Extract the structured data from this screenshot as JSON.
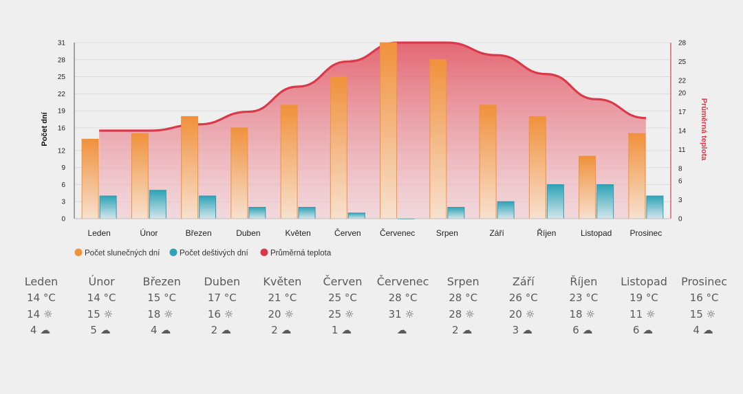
{
  "chart_data": {
    "type": "bar",
    "categories": [
      "Leden",
      "Únor",
      "Březen",
      "Duben",
      "Květen",
      "Červen",
      "Červenec",
      "Srpen",
      "Září",
      "Říjen",
      "Listopad",
      "Prosinec"
    ],
    "series": [
      {
        "name": "Počet slunečných dní",
        "kind": "bar",
        "axis": "left",
        "color": "#f0913c",
        "values": [
          14,
          15,
          18,
          16,
          20,
          25,
          31,
          28,
          20,
          18,
          11,
          15
        ]
      },
      {
        "name": "Počet deštivých dní",
        "kind": "bar",
        "axis": "left",
        "color": "#2fa3b5",
        "values": [
          4,
          5,
          4,
          2,
          2,
          1,
          0,
          2,
          3,
          6,
          6,
          4
        ]
      },
      {
        "name": "Průměrná teplota",
        "kind": "area",
        "axis": "right",
        "color": "#d93a4a",
        "values": [
          14,
          14,
          15,
          17,
          21,
          25,
          28,
          28,
          26,
          23,
          19,
          16
        ]
      }
    ],
    "y_left": {
      "label": "Počet dní",
      "ticks": [
        0,
        3,
        6,
        9,
        12,
        16,
        19,
        22,
        25,
        28,
        31
      ],
      "range": [
        0,
        31
      ]
    },
    "y_right": {
      "label": "Průměrná teplota",
      "ticks": [
        0,
        3,
        6,
        8,
        11,
        14,
        17,
        20,
        22,
        25,
        28
      ],
      "range": [
        0,
        28
      ]
    },
    "grid": true,
    "legend_position": "bottom-left"
  },
  "summary": [
    {
      "month": "Leden",
      "temp": "14 °C",
      "sun": "14",
      "rain": "4"
    },
    {
      "month": "Únor",
      "temp": "14 °C",
      "sun": "15",
      "rain": "5"
    },
    {
      "month": "Březen",
      "temp": "15 °C",
      "sun": "18",
      "rain": "4"
    },
    {
      "month": "Duben",
      "temp": "17 °C",
      "sun": "16",
      "rain": "2"
    },
    {
      "month": "Květen",
      "temp": "21 °C",
      "sun": "20",
      "rain": "2"
    },
    {
      "month": "Červen",
      "temp": "25 °C",
      "sun": "25",
      "rain": "1"
    },
    {
      "month": "Červenec",
      "temp": "28 °C",
      "sun": "31",
      "rain": ""
    },
    {
      "month": "Srpen",
      "temp": "28 °C",
      "sun": "28",
      "rain": "2"
    },
    {
      "month": "Září",
      "temp": "26 °C",
      "sun": "20",
      "rain": "3"
    },
    {
      "month": "Říjen",
      "temp": "23 °C",
      "sun": "18",
      "rain": "6"
    },
    {
      "month": "Listopad",
      "temp": "19 °C",
      "sun": "11",
      "rain": "6"
    },
    {
      "month": "Prosinec",
      "temp": "16 °C",
      "sun": "15",
      "rain": "4"
    }
  ],
  "icons": {
    "sun": "sun-icon",
    "rain": "cloud-rain-icon"
  }
}
